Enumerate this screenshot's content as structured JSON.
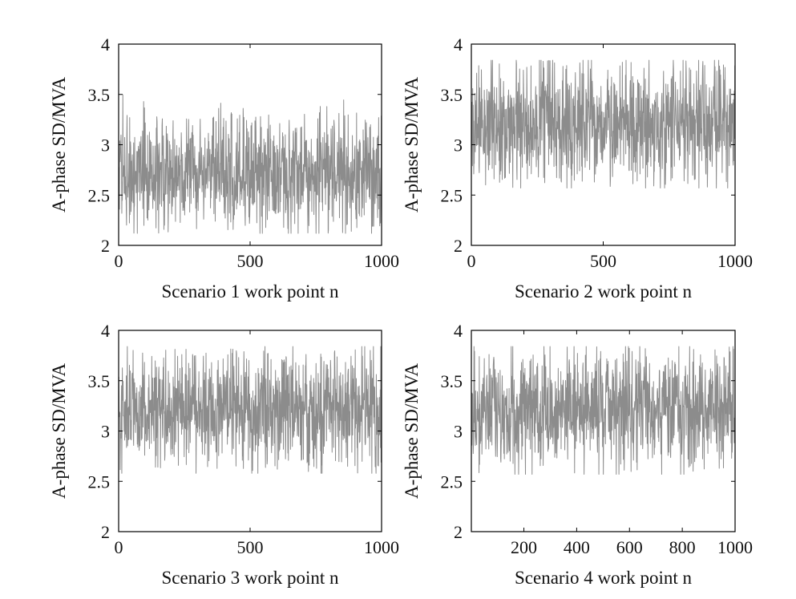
{
  "chart_data": [
    {
      "type": "line",
      "xlabel": "Scenario 1 work point n",
      "ylabel": "A-phase SD/MVA",
      "xlim": [
        0,
        1000
      ],
      "ylim": [
        2,
        4
      ],
      "xticks": [
        0,
        500,
        1000
      ],
      "yticks": [
        2,
        2.5,
        3,
        3.5,
        4
      ],
      "ytick_labels": [
        "2",
        "2.5",
        "3",
        "3.5",
        "4"
      ],
      "series": [
        {
          "color": "#8c8c8c",
          "n_points": 1000,
          "mean": 2.72,
          "min": 2.12,
          "max": 3.58
        }
      ]
    },
    {
      "type": "line",
      "xlabel": "Scenario 2 work point n",
      "ylabel": "A-phase SD/MVA",
      "xlim": [
        0,
        1000
      ],
      "ylim": [
        2,
        4
      ],
      "xticks": [
        0,
        500,
        1000
      ],
      "yticks": [
        2,
        2.5,
        3,
        3.5,
        4
      ],
      "ytick_labels": [
        "2",
        "2.5",
        "3",
        "3.5",
        "4"
      ],
      "series": [
        {
          "color": "#8c8c8c",
          "n_points": 1000,
          "mean": 3.2,
          "min": 2.57,
          "max": 3.84
        }
      ]
    },
    {
      "type": "line",
      "xlabel": "Scenario 3 work point n",
      "ylabel": "A-phase SD/MVA",
      "xlim": [
        0,
        1000
      ],
      "ylim": [
        2,
        4
      ],
      "xticks": [
        0,
        500,
        1000
      ],
      "yticks": [
        2,
        2.5,
        3,
        3.5,
        4
      ],
      "ytick_labels": [
        "2",
        "2.5",
        "3",
        "3.5",
        "4"
      ],
      "series": [
        {
          "color": "#8c8c8c",
          "n_points": 1000,
          "mean": 3.2,
          "min": 2.58,
          "max": 3.84
        }
      ]
    },
    {
      "type": "line",
      "xlabel": "Scenario 4 work point n",
      "ylabel": "A-phase SD/MVA",
      "xlim": [
        1,
        1000
      ],
      "ylim": [
        2,
        4
      ],
      "xticks": [
        200,
        400,
        600,
        800,
        1000
      ],
      "yticks": [
        2,
        2.5,
        3,
        3.5,
        4
      ],
      "ytick_labels": [
        "2",
        "2.5",
        "3",
        "3.5",
        "4"
      ],
      "series": [
        {
          "color": "#8c8c8c",
          "n_points": 1000,
          "mean": 3.2,
          "min": 2.57,
          "max": 3.84
        }
      ]
    }
  ]
}
